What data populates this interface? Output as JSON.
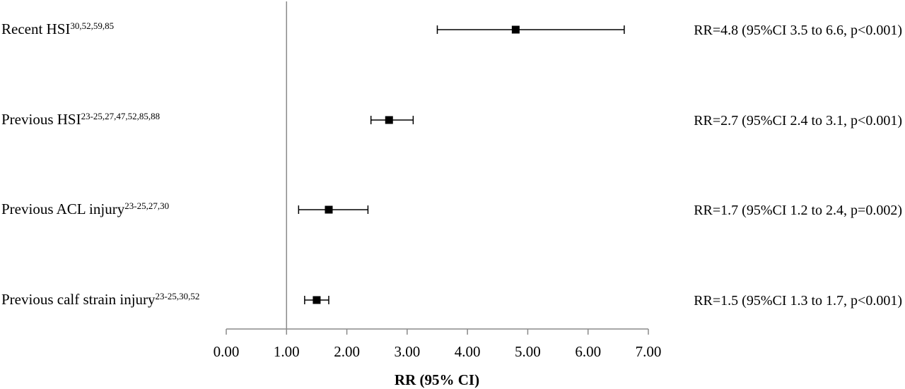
{
  "chart_data": {
    "type": "forest",
    "xlabel": "RR (95% CI)",
    "xlim": [
      0,
      7
    ],
    "ticks": [
      "0.00",
      "1.00",
      "2.00",
      "3.00",
      "4.00",
      "5.00",
      "6.00",
      "7.00"
    ],
    "reference_line": 1.0,
    "rows": [
      {
        "label": "Recent HSI",
        "refs": "30,52,59,85",
        "rr": 4.8,
        "ci_low": 3.5,
        "ci_high": 6.6,
        "text": "RR=4.8 (95%CI 3.5 to 6.6, p<0.001)"
      },
      {
        "label": "Previous HSI",
        "refs": "23-25,27,47,52,85,88",
        "rr": 2.7,
        "ci_low": 2.4,
        "ci_high": 3.1,
        "text": "RR=2.7 (95%CI 2.4 to 3.1, p<0.001)"
      },
      {
        "label": "Previous ACL injury",
        "refs": "23-25,27,30",
        "rr": 1.7,
        "ci_low": 1.2,
        "ci_high": 2.35,
        "text": "RR=1.7 (95%CI 1.2 to 2.4, p=0.002)"
      },
      {
        "label": "Previous calf strain injury",
        "refs": "23-25,30,52",
        "rr": 1.5,
        "ci_low": 1.3,
        "ci_high": 1.7,
        "text": "RR=1.5 (95%CI 1.3 to 1.7, p<0.001)"
      }
    ]
  }
}
